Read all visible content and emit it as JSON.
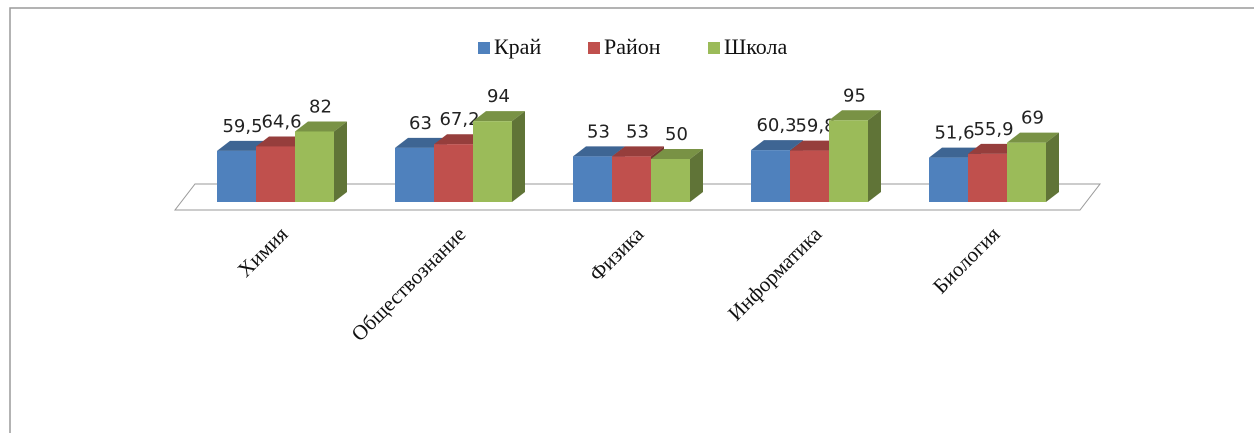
{
  "chart_data": {
    "type": "bar3d",
    "categories": [
      "Химия",
      "Обществознание",
      "Физика",
      "Информатика",
      "Биология"
    ],
    "series": [
      {
        "name": "Край",
        "color": "#4f81bd",
        "values": [
          59.5,
          63,
          53,
          60.3,
          51.6
        ],
        "value_labels": [
          "59,5",
          "63",
          "53",
          "60,3",
          "51,6"
        ]
      },
      {
        "name": "Район",
        "color": "#c0504d",
        "values": [
          64.6,
          67.2,
          53,
          59.8,
          55.9
        ],
        "value_labels": [
          "64,6",
          "67,2",
          "53",
          "59,8",
          "55,9"
        ]
      },
      {
        "name": "Школа",
        "color": "#9bbb59",
        "values": [
          82,
          94,
          50,
          95,
          69
        ],
        "value_labels": [
          "82",
          "94",
          "50",
          "95",
          "69"
        ]
      }
    ],
    "legend": "top"
  }
}
